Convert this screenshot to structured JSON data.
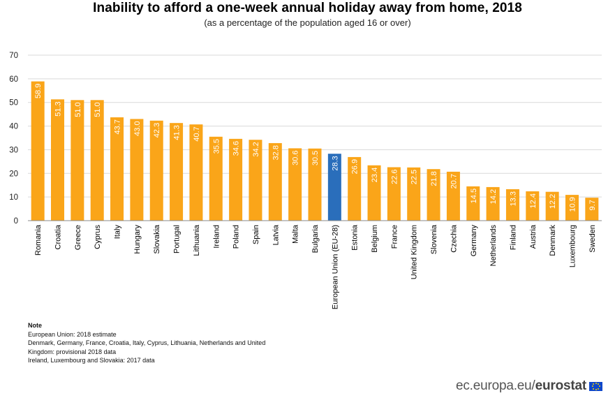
{
  "header": {
    "title": "Inability to afford a one-week annual holiday away from home, 2018",
    "subtitle": "(as a percentage of the population aged 16 or over)"
  },
  "chart_data": {
    "type": "bar",
    "categories": [
      "Romania",
      "Croatia",
      "Greece",
      "Cyprus",
      "Italy",
      "Hungary",
      "Slovakia",
      "Portugal",
      "Lithuania",
      "Ireland",
      "Poland",
      "Spain",
      "Latvia",
      "Malta",
      "Bulgaria",
      "European Union (EU-28)",
      "Estonia",
      "Belgium",
      "France",
      "United Kingdom",
      "Slovenia",
      "Czechia",
      "Germany",
      "Netherlands",
      "Finland",
      "Austria",
      "Denmark",
      "Luxembourg",
      "Sweden"
    ],
    "values": [
      58.9,
      51.3,
      51.0,
      51.0,
      43.7,
      43.0,
      42.3,
      41.3,
      40.7,
      35.5,
      34.6,
      34.2,
      32.8,
      30.6,
      30.5,
      28.3,
      26.9,
      23.4,
      22.6,
      22.5,
      21.8,
      20.7,
      14.5,
      14.2,
      13.3,
      12.4,
      12.2,
      10.9,
      9.7
    ],
    "value_labels": [
      "58.9",
      "51.3",
      "51.0",
      "51.0",
      "43.7",
      "43.0",
      "42.3",
      "41.3",
      "40.7",
      "35.5",
      "34.6",
      "34.2",
      "32.8",
      "30.6",
      "30.5",
      "28.3",
      "26.9",
      "23.4",
      "22.6",
      "22.5",
      "21.8",
      "20.7",
      "14.5",
      "14.2",
      "13.3",
      "12.4",
      "12.2",
      "10.9",
      "9.7"
    ],
    "highlight_category": "European Union (EU-28)",
    "colors": {
      "default": "#faa519",
      "highlight": "#2a6ebb",
      "grid": "#d9d9d9",
      "label": "#ffffff"
    },
    "ylim": [
      0,
      70
    ],
    "yticks": [
      "0",
      "10",
      "20",
      "30",
      "40",
      "50",
      "60",
      "70"
    ],
    "xlabel": "",
    "ylabel": "",
    "grid": true,
    "legend": "none"
  },
  "note": {
    "heading": "Note",
    "lines": [
      "European Union: 2018 estimate",
      "Denmark, Germany, France, Croatia, Italy, Cyprus, Lithuania, Netherlands and United",
      "Kingdom: provisional 2018 data",
      "Ireland, Luxembourg and Slovakia: 2017 data"
    ]
  },
  "footer": {
    "site_plain": "ec.europa.eu/",
    "site_bold": "eurostat",
    "logo_icon": "eu-flag-icon"
  }
}
